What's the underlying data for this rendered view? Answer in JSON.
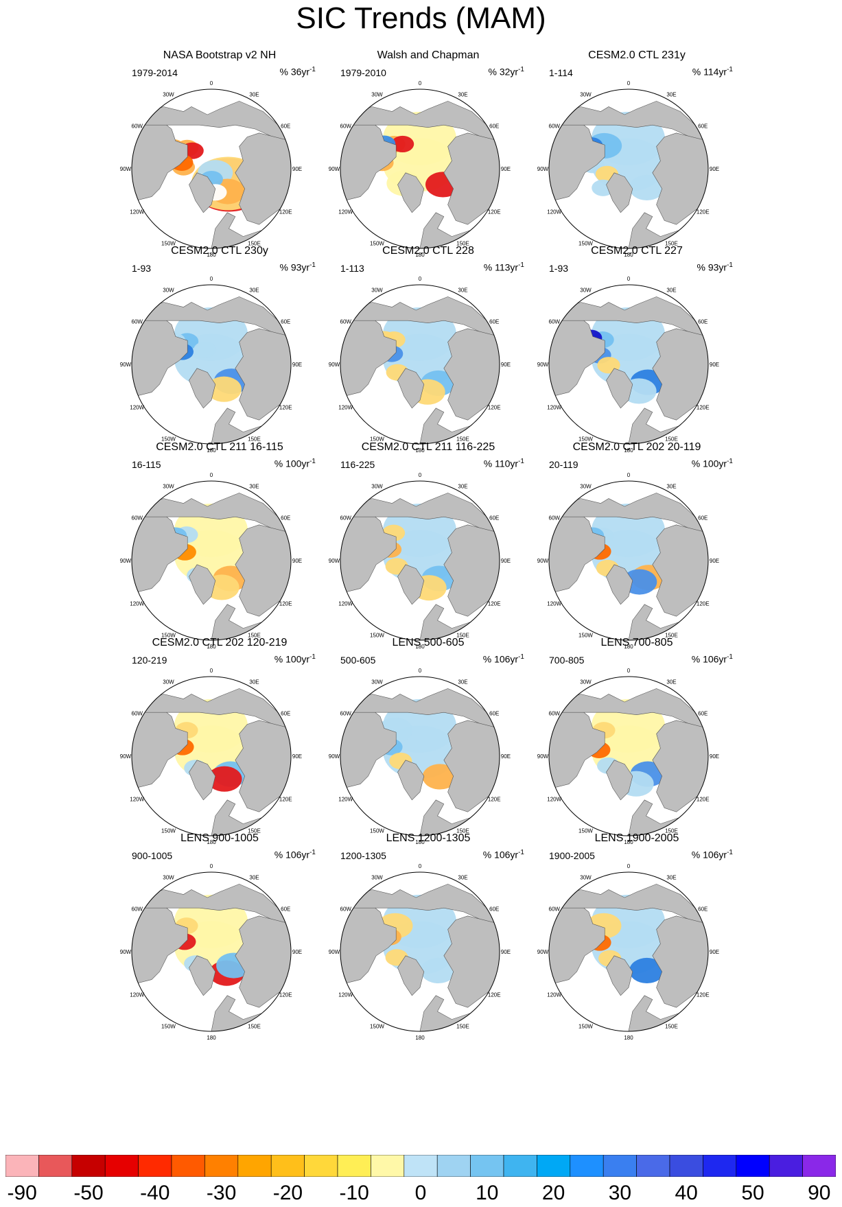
{
  "title": "SIC Trends (MAM)",
  "land_color": "#bebebe",
  "ocean_color": "#ffffff",
  "longitude_labels": [
    "180",
    "150E",
    "120E",
    "90E",
    "60E",
    "30E",
    "0",
    "30W",
    "60W",
    "90W",
    "120W",
    "150W"
  ],
  "panels": [
    {
      "title": "NASA Bootstrap v2 NH",
      "period": "1979-2014",
      "units": "% 36yr",
      "units_exp": "-1",
      "pattern": [
        [
          0.3,
          0.74,
          "#e31a1c"
        ],
        [
          0.28,
          0.72,
          "#fed976"
        ],
        [
          0.07,
          0.78,
          "#b3dcf2"
        ],
        [
          0.35,
          0.95,
          "#feb24c"
        ],
        [
          0.13,
          1.55,
          "#74c0f0"
        ],
        [
          0.4,
          3.85,
          "#feb24c"
        ],
        [
          0.33,
          3.9,
          "#e31a1c"
        ],
        [
          0.35,
          3.2,
          "#feb24c"
        ],
        [
          0.38,
          3.35,
          "#ff6a00"
        ],
        [
          0.55,
          3.65,
          "#feb24c"
        ],
        [
          0.3,
          1.4,
          "#ffffff"
        ]
      ]
    },
    {
      "title": "Walsh and Chapman",
      "period": "1979-2010",
      "units": "% 32yr",
      "units_exp": "-1",
      "pattern": [
        [
          0.05,
          4.7,
          "#fff7a8"
        ],
        [
          0.38,
          4.7,
          "#fff7a8"
        ],
        [
          0.27,
          2.4,
          "#fff7a8"
        ],
        [
          0.35,
          0.6,
          "#e31a1c"
        ],
        [
          0.45,
          3.9,
          "#feb24c"
        ],
        [
          0.52,
          3.55,
          "#3a8ee6"
        ],
        [
          0.48,
          3.3,
          "#feb24c"
        ],
        [
          0.38,
          4.1,
          "#e31a1c"
        ],
        [
          0.55,
          3.75,
          "#3a8ee6"
        ]
      ]
    },
    {
      "title": "CESM2.0 CTL 231y",
      "period": "1-114",
      "units": "% 114yr",
      "units_exp": "-1",
      "pattern": [
        [
          0.05,
          4.7,
          "#b3dcf2"
        ],
        [
          0.38,
          4.7,
          "#b3dcf2"
        ],
        [
          0.33,
          0.8,
          "#b3dcf2"
        ],
        [
          0.42,
          3.9,
          "#74c0f0"
        ],
        [
          0.55,
          3.7,
          "#2c7fe0"
        ],
        [
          0.45,
          3.25,
          "#b3dcf2"
        ],
        [
          0.28,
          2.9,
          "#fed976"
        ],
        [
          0.4,
          2.5,
          "#b3dcf2"
        ]
      ]
    },
    {
      "title": "CESM2.0 CTL 230y",
      "period": "1-93",
      "units": "% 93yr",
      "units_exp": "-1",
      "pattern": [
        [
          0.05,
          4.7,
          "#b3dcf2"
        ],
        [
          0.38,
          4.7,
          "#b3dcf2"
        ],
        [
          0.33,
          0.7,
          "#4a90e8"
        ],
        [
          0.35,
          1.1,
          "#fed976"
        ],
        [
          0.42,
          3.9,
          "#74c0f0"
        ],
        [
          0.4,
          3.55,
          "#2c7fe0"
        ],
        [
          0.55,
          3.7,
          "#b3dcf2"
        ],
        [
          0.2,
          4.3,
          "#b3dcf2"
        ]
      ]
    },
    {
      "title": "CESM2.0 CTL 228",
      "period": "1-113",
      "units": "% 113yr",
      "units_exp": "-1",
      "pattern": [
        [
          0.05,
          4.7,
          "#b3dcf2"
        ],
        [
          0.38,
          4.7,
          "#b3dcf2"
        ],
        [
          0.33,
          0.8,
          "#74c0f0"
        ],
        [
          0.36,
          1.3,
          "#fed976"
        ],
        [
          0.45,
          3.9,
          "#fed976"
        ],
        [
          0.38,
          3.5,
          "#4a90e8"
        ],
        [
          0.55,
          3.75,
          "#fed976"
        ],
        [
          0.3,
          2.8,
          "#fed976"
        ]
      ]
    },
    {
      "title": "CESM2.0 CTL 227",
      "period": "1-93",
      "units": "% 93yr",
      "units_exp": "-1",
      "pattern": [
        [
          0.05,
          4.7,
          "#b3dcf2"
        ],
        [
          0.38,
          4.7,
          "#b3dcf2"
        ],
        [
          0.33,
          0.75,
          "#2c7fe0"
        ],
        [
          0.36,
          1.2,
          "#b3dcf2"
        ],
        [
          0.45,
          3.9,
          "#74c0f0"
        ],
        [
          0.58,
          3.75,
          "#1414c8"
        ],
        [
          0.38,
          3.45,
          "#4a90e8"
        ],
        [
          0.25,
          3.1,
          "#fed976"
        ]
      ]
    },
    {
      "title": "CESM2.0 CTL 211 16-115",
      "period": "16-115",
      "units": "% 100yr",
      "units_exp": "-1",
      "pattern": [
        [
          0.05,
          4.7,
          "#fff7a8"
        ],
        [
          0.38,
          4.7,
          "#fff7a8"
        ],
        [
          0.33,
          0.75,
          "#feb24c"
        ],
        [
          0.36,
          1.2,
          "#fed976"
        ],
        [
          0.45,
          3.95,
          "#b3dcf2"
        ],
        [
          0.55,
          3.75,
          "#74c0f0"
        ],
        [
          0.35,
          3.45,
          "#ff8c00"
        ],
        [
          0.25,
          2.3,
          "#b3dcf2"
        ]
      ]
    },
    {
      "title": "CESM2.0 CTL 211 116-225",
      "period": "116-225",
      "units": "% 110yr",
      "units_exp": "-1",
      "pattern": [
        [
          0.05,
          4.7,
          "#b3dcf2"
        ],
        [
          0.38,
          4.7,
          "#b3dcf2"
        ],
        [
          0.33,
          0.75,
          "#74c0f0"
        ],
        [
          0.36,
          1.25,
          "#fed976"
        ],
        [
          0.48,
          3.95,
          "#fed976"
        ],
        [
          0.4,
          3.5,
          "#feb24c"
        ],
        [
          0.3,
          2.9,
          "#fed976"
        ]
      ]
    },
    {
      "title": "CESM2.0 CTL 202 20-119",
      "period": "20-119",
      "units": "% 100yr",
      "units_exp": "-1",
      "pattern": [
        [
          0.05,
          4.7,
          "#b3dcf2"
        ],
        [
          0.38,
          4.7,
          "#b3dcf2"
        ],
        [
          0.33,
          0.7,
          "#feb24c"
        ],
        [
          0.3,
          1.1,
          "#4a90e8"
        ],
        [
          0.45,
          3.9,
          "#b3dcf2"
        ],
        [
          0.55,
          3.75,
          "#74c0f0"
        ],
        [
          0.38,
          3.45,
          "#ff6a00"
        ],
        [
          0.28,
          2.8,
          "#fed976"
        ]
      ]
    },
    {
      "title": "CESM2.0 CTL 202 120-219",
      "period": "120-219",
      "units": "% 100yr",
      "units_exp": "-1",
      "pattern": [
        [
          0.05,
          4.7,
          "#fff7a8"
        ],
        [
          0.38,
          4.7,
          "#fff7a8"
        ],
        [
          0.33,
          0.75,
          "#74c0f0"
        ],
        [
          0.33,
          1.05,
          "#e31a1c"
        ],
        [
          0.45,
          3.95,
          "#fed976"
        ],
        [
          0.38,
          3.45,
          "#ff6a00"
        ],
        [
          0.25,
          2.5,
          "#b3dcf2"
        ]
      ]
    },
    {
      "title": "LENS 500-605",
      "period": "500-605",
      "units": "% 106yr",
      "units_exp": "-1",
      "pattern": [
        [
          0.05,
          4.7,
          "#b3dcf2"
        ],
        [
          0.38,
          4.7,
          "#b3dcf2"
        ],
        [
          0.36,
          0.8,
          "#feb24c"
        ],
        [
          0.45,
          3.95,
          "#b3dcf2"
        ],
        [
          0.38,
          3.45,
          "#74c0f0"
        ],
        [
          0.25,
          2.9,
          "#fed976"
        ]
      ]
    },
    {
      "title": "LENS 700-805",
      "period": "700-805",
      "units": "% 106yr",
      "units_exp": "-1",
      "pattern": [
        [
          0.05,
          4.7,
          "#fff7a8"
        ],
        [
          0.38,
          4.7,
          "#fff7a8"
        ],
        [
          0.33,
          0.75,
          "#4a90e8"
        ],
        [
          0.36,
          1.3,
          "#b3dcf2"
        ],
        [
          0.45,
          3.95,
          "#fed976"
        ],
        [
          0.38,
          3.35,
          "#ff6a00"
        ],
        [
          0.28,
          2.7,
          "#b3dcf2"
        ]
      ]
    },
    {
      "title": "LENS 900-1005",
      "period": "900-1005",
      "units": "% 106yr",
      "units_exp": "-1",
      "pattern": [
        [
          0.05,
          4.7,
          "#fff7a8"
        ],
        [
          0.38,
          4.7,
          "#fff7a8"
        ],
        [
          0.33,
          0.95,
          "#e31a1c"
        ],
        [
          0.33,
          0.55,
          "#74c0f0"
        ],
        [
          0.45,
          3.95,
          "#fed976"
        ],
        [
          0.36,
          3.5,
          "#e31a1c"
        ],
        [
          0.25,
          2.5,
          "#b3dcf2"
        ]
      ]
    },
    {
      "title": "LENS 1200-1305",
      "period": "1200-1305",
      "units": "% 106yr",
      "units_exp": "-1",
      "pattern": [
        [
          0.05,
          4.7,
          "#b3dcf2"
        ],
        [
          0.38,
          4.7,
          "#b3dcf2"
        ],
        [
          0.33,
          0.8,
          "#b3dcf2"
        ],
        [
          0.45,
          3.95,
          "#fed976"
        ],
        [
          0.42,
          3.6,
          "#feb24c"
        ],
        [
          0.3,
          2.9,
          "#fed976"
        ]
      ]
    },
    {
      "title": "LENS 1900-2005",
      "period": "1900-2005",
      "units": "% 106yr",
      "units_exp": "-1",
      "pattern": [
        [
          0.05,
          4.7,
          "#b3dcf2"
        ],
        [
          0.38,
          4.7,
          "#b3dcf2"
        ],
        [
          0.33,
          0.8,
          "#2c7fe0"
        ],
        [
          0.45,
          3.95,
          "#fed976"
        ],
        [
          0.38,
          3.45,
          "#ff6a00"
        ],
        [
          0.25,
          2.8,
          "#fed976"
        ]
      ]
    }
  ],
  "colorbar": {
    "colors": [
      "#fbb4b9",
      "#e8585a",
      "#c60000",
      "#e60000",
      "#ff2a00",
      "#ff5a00",
      "#ff8000",
      "#ffa500",
      "#ffbf1a",
      "#ffd83a",
      "#ffee55",
      "#fff8a8",
      "#bfe3f7",
      "#9fd3f2",
      "#75c4f1",
      "#3fb4f0",
      "#00a8f5",
      "#1e90ff",
      "#3a7ff0",
      "#4a6ae8",
      "#3a4de0",
      "#1e28f0",
      "#0000ff",
      "#4a1ee0",
      "#8a28e8"
    ],
    "labels": [
      "-90",
      "-50",
      "-40",
      "-30",
      "-20",
      "-10",
      "0",
      "10",
      "20",
      "30",
      "40",
      "50",
      "90"
    ]
  }
}
